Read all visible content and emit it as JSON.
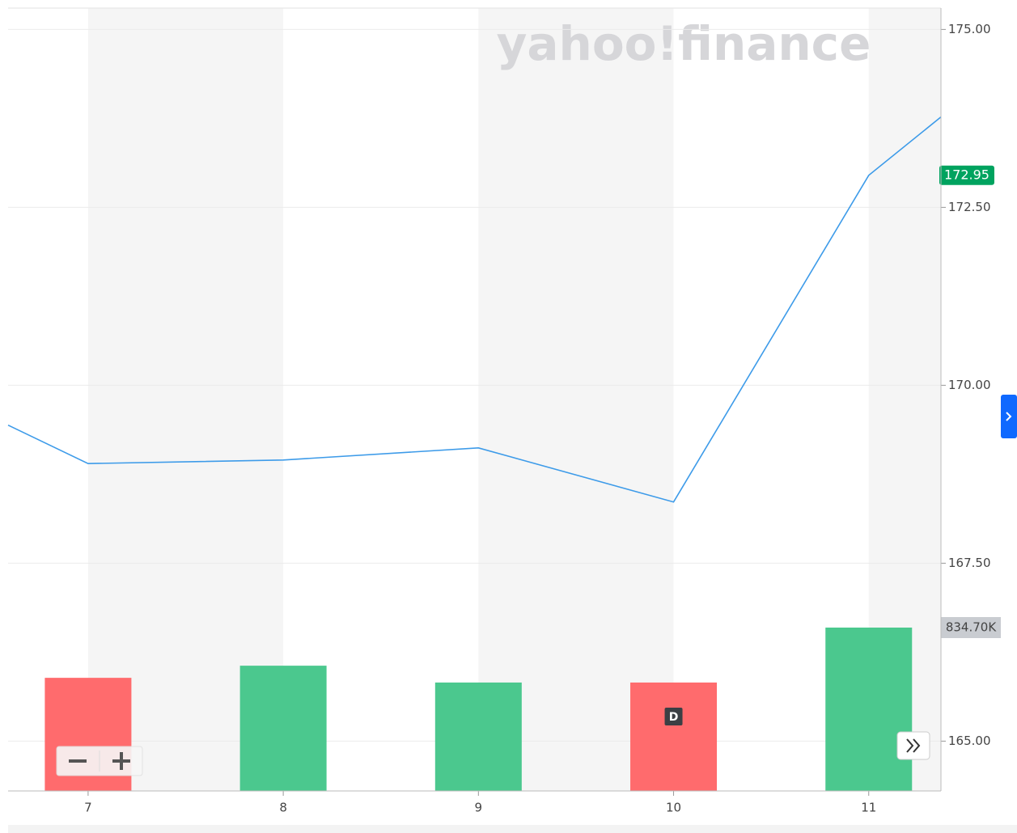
{
  "chart_data": {
    "type": "line",
    "xlim": [
      6.59,
      11.37
    ],
    "xticks": [
      7,
      8,
      9,
      10,
      11
    ],
    "ylim": [
      164.3,
      175.3
    ],
    "yticks": [
      {
        "value": 165,
        "label": "165.00"
      },
      {
        "value": 167.5,
        "label": "167.50"
      },
      {
        "value": 170,
        "label": "170.00"
      },
      {
        "value": 172.5,
        "label": "172.50"
      },
      {
        "value": 175,
        "label": "175.00"
      }
    ],
    "y2lim": [
      0,
      4000000
    ],
    "grid": true,
    "series": [
      {
        "type": "line",
        "color": "#3d9be9",
        "x": [
          6.59,
          7,
          8,
          9,
          10,
          11,
          11.37
        ],
        "values": [
          169.44,
          168.9,
          168.95,
          169.12,
          168.36,
          172.95,
          173.77
        ]
      },
      {
        "type": "bar",
        "axis": "y2",
        "colors": [
          "#ff6b6d",
          "#4bc88e",
          "#4bc88e",
          "#ff6b6d",
          "#4bc88e"
        ],
        "x": [
          7,
          8,
          9,
          10,
          11
        ],
        "values": [
          578000,
          640000,
          554000,
          554000,
          834700
        ],
        "value_labels": [
          null,
          null,
          null,
          null,
          "834.70K"
        ]
      }
    ],
    "watermark": "yahoo!finance",
    "event_marker": {
      "x": 10,
      "label": "D"
    }
  }
}
